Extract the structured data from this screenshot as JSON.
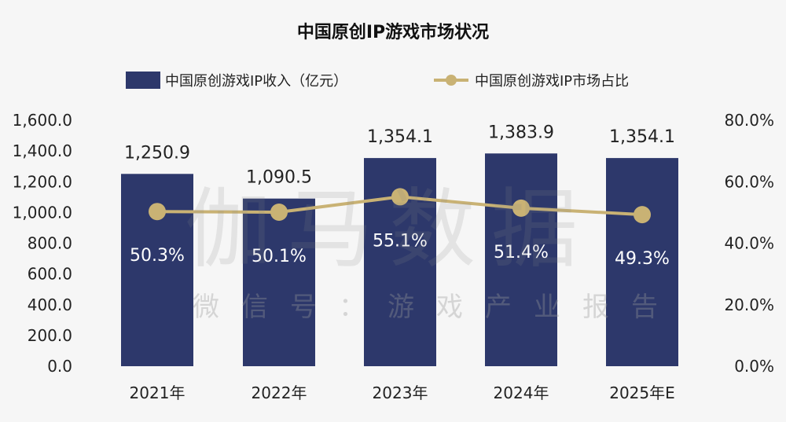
{
  "chart_data": {
    "type": "bar+line",
    "title": "中国原创IP游戏市场状况",
    "categories": [
      "2021年",
      "2022年",
      "2023年",
      "2024年",
      "2025年E"
    ],
    "series": [
      {
        "name": "中国原创游戏IP收入（亿元）",
        "type": "bar",
        "axis": "left",
        "values": [
          1250.9,
          1090.5,
          1354.1,
          1383.9,
          1354.1
        ],
        "labels": [
          "1,250.9",
          "1,090.5",
          "1,354.1",
          "1,383.9",
          "1,354.1"
        ]
      },
      {
        "name": "中国原创游戏IP市场占比",
        "type": "line",
        "axis": "right",
        "values": [
          50.3,
          50.1,
          55.1,
          51.4,
          49.3
        ],
        "labels": [
          "50.3%",
          "50.1%",
          "55.1%",
          "51.4%",
          "49.3%"
        ]
      }
    ],
    "left_axis": {
      "ylim": [
        0,
        1600
      ],
      "ticks": [
        "0.0",
        "200.0",
        "400.0",
        "600.0",
        "800.0",
        "1,000.0",
        "1,200.0",
        "1,400.0",
        "1,600.0"
      ]
    },
    "right_axis": {
      "ylim": [
        0,
        80
      ],
      "ticks": [
        "0.0%",
        "20.0%",
        "40.0%",
        "60.0%",
        "80.0%"
      ]
    },
    "legend_position": "top",
    "grid": false,
    "colors": {
      "bar": "#2d386b",
      "line": "#c9b274"
    }
  },
  "watermark": {
    "main": "伽马数据",
    "sub": "微信号：游戏产业报告"
  }
}
